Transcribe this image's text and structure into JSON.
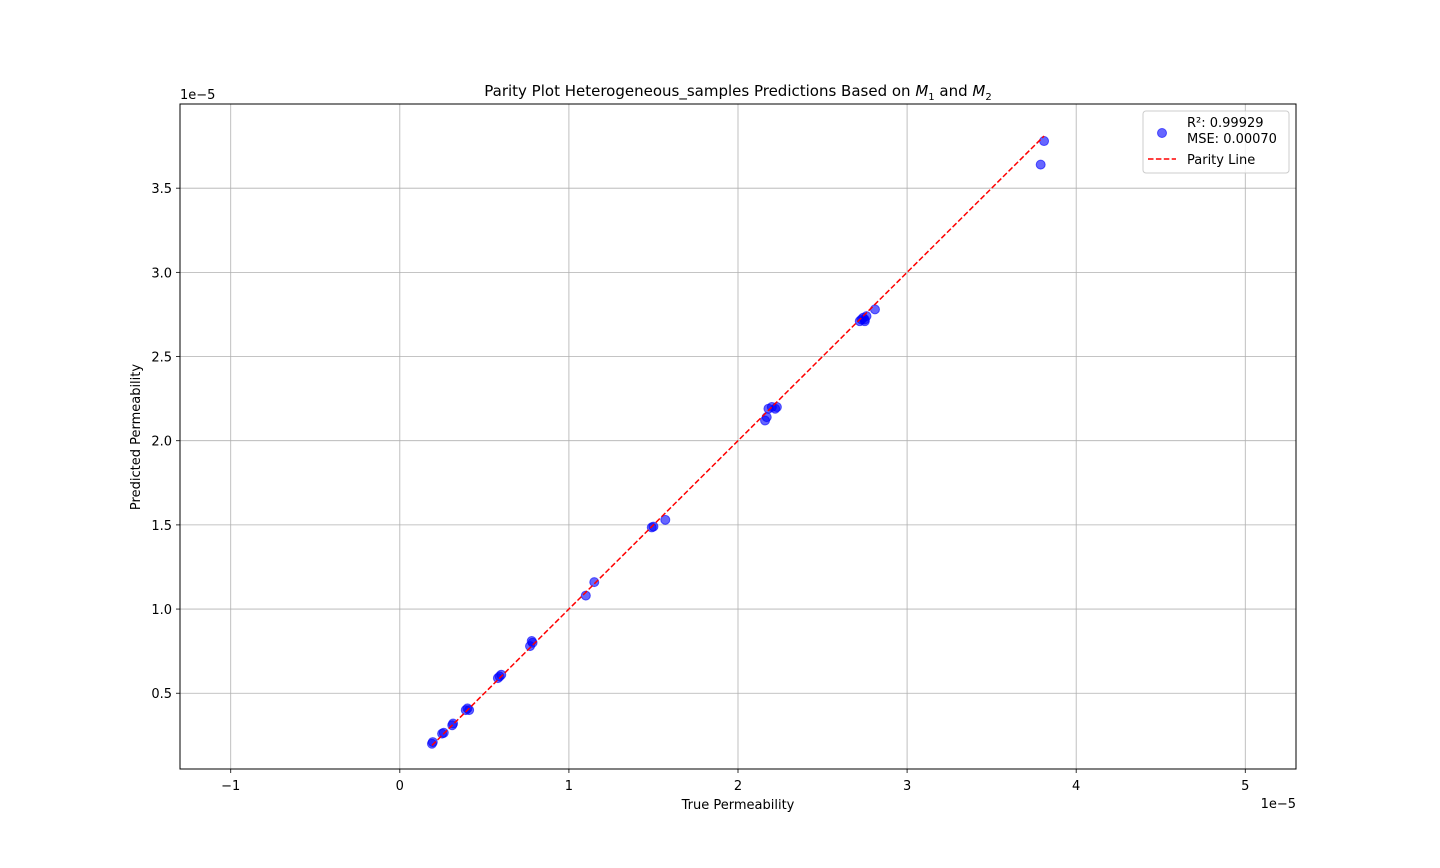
{
  "chart_data": {
    "type": "scatter",
    "title": {
      "prefix": "Parity Plot Heterogeneous_samples Predictions Based on ",
      "m1_base": "M",
      "m1_sub": "1",
      "middle": " and ",
      "m2_base": "M",
      "m2_sub": "2"
    },
    "xlabel": "True Permeability",
    "ylabel": "Predicted Permeability",
    "x_offset_label": "1e−5",
    "y_offset_label": "1e−5",
    "scale_factor": 1e-05,
    "xlim": [
      -1.3,
      5.3
    ],
    "ylim": [
      0.05,
      4.0
    ],
    "xticks": [
      -1,
      0,
      1,
      2,
      3,
      4,
      5
    ],
    "xtick_labels": [
      "−1",
      "0",
      "1",
      "2",
      "3",
      "4",
      "5"
    ],
    "yticks": [
      0.5,
      1.0,
      1.5,
      2.0,
      2.5,
      3.0,
      3.5
    ],
    "ytick_labels": [
      "0.5",
      "1.0",
      "1.5",
      "2.0",
      "2.5",
      "3.0",
      "3.5"
    ],
    "grid": true,
    "legend_position": "top-right",
    "series": [
      {
        "name": "R²: 0.99929\nMSE: 0.00070",
        "legend_lines": [
          "R²: 0.99929",
          "MSE: 0.00070"
        ],
        "kind": "scatter",
        "color": "#0000ff",
        "alpha": 0.6,
        "points": [
          [
            0.19,
            0.2
          ],
          [
            0.195,
            0.21
          ],
          [
            0.25,
            0.26
          ],
          [
            0.26,
            0.265
          ],
          [
            0.31,
            0.31
          ],
          [
            0.315,
            0.32
          ],
          [
            0.39,
            0.4
          ],
          [
            0.4,
            0.41
          ],
          [
            0.41,
            0.4
          ],
          [
            0.58,
            0.59
          ],
          [
            0.59,
            0.6
          ],
          [
            0.6,
            0.61
          ],
          [
            0.77,
            0.78
          ],
          [
            0.78,
            0.81
          ],
          [
            0.785,
            0.8
          ],
          [
            1.1,
            1.08
          ],
          [
            1.15,
            1.16
          ],
          [
            1.5,
            1.49
          ],
          [
            1.49,
            1.485
          ],
          [
            1.57,
            1.53
          ],
          [
            2.16,
            2.12
          ],
          [
            2.17,
            2.14
          ],
          [
            2.18,
            2.19
          ],
          [
            2.2,
            2.2
          ],
          [
            2.22,
            2.19
          ],
          [
            2.23,
            2.2
          ],
          [
            2.72,
            2.71
          ],
          [
            2.73,
            2.72
          ],
          [
            2.74,
            2.73
          ],
          [
            2.75,
            2.71
          ],
          [
            2.76,
            2.74
          ],
          [
            2.75,
            2.72
          ],
          [
            2.81,
            2.78
          ],
          [
            3.79,
            3.64
          ],
          [
            3.81,
            3.78
          ]
        ]
      },
      {
        "name": "Parity Line",
        "kind": "line",
        "color": "#ff0000",
        "dashed": true,
        "x": [
          0.19,
          3.81
        ],
        "y": [
          0.19,
          3.81
        ]
      }
    ]
  }
}
